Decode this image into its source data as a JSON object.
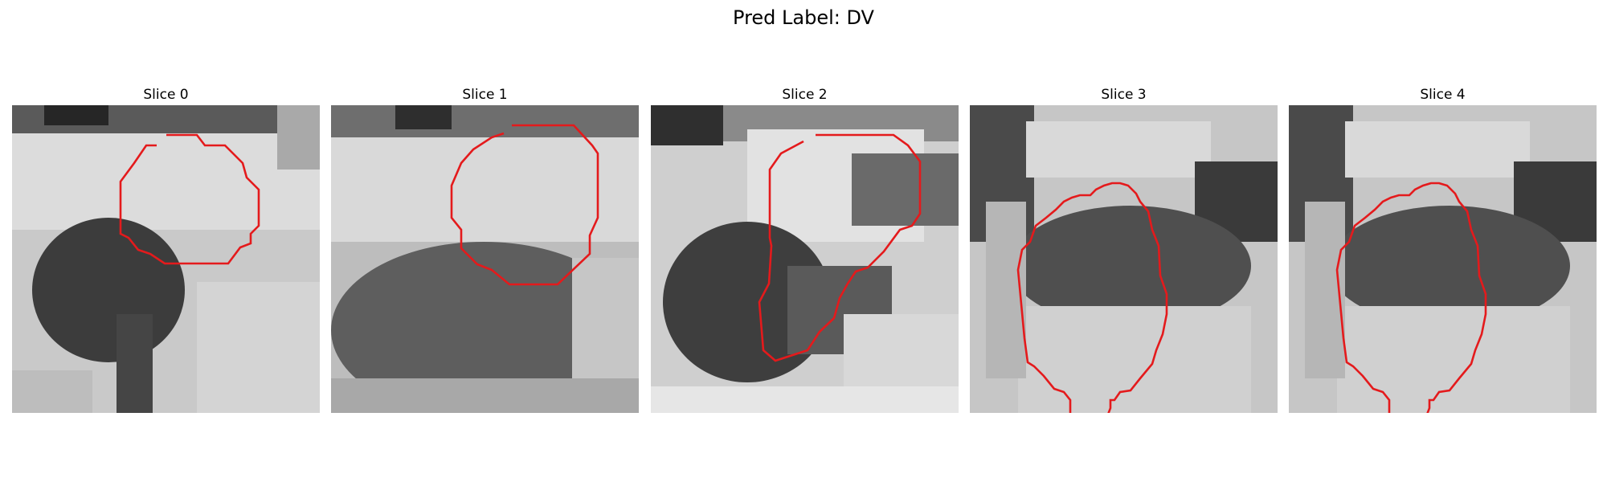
{
  "figure": {
    "title": "Pred Label: DV"
  },
  "panels": [
    {
      "title": "Slice 0"
    },
    {
      "title": "Slice 1"
    },
    {
      "title": "Slice 2"
    },
    {
      "title": "Slice 3"
    },
    {
      "title": "Slice 4"
    }
  ],
  "style": {
    "contour_color": "#e41a1c",
    "background_color": "#ffffff",
    "colormap": "gray"
  }
}
